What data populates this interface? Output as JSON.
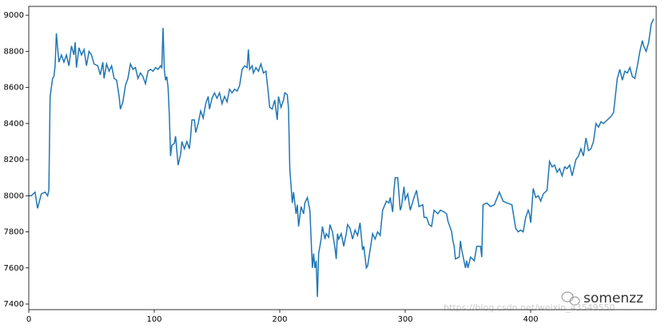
{
  "chart_data": {
    "type": "line",
    "color": "#1f77b4",
    "xlim": [
      0,
      500
    ],
    "ylim": [
      7369,
      9049
    ],
    "xticks": [
      0,
      100,
      200,
      300,
      400
    ],
    "yticks": [
      7400,
      7600,
      7800,
      8000,
      8200,
      8400,
      8600,
      8800,
      9000
    ],
    "watermark": "somenzz",
    "watermark_url": "https://blog.csdn.net/weixin_43549550",
    "x": [
      0,
      2,
      5,
      7,
      10,
      13,
      15,
      16,
      17,
      19,
      20,
      21,
      22,
      24,
      26,
      28,
      30,
      32,
      34,
      36,
      37,
      38,
      40,
      42,
      44,
      46,
      48,
      50,
      52,
      55,
      57,
      59,
      60,
      62,
      64,
      66,
      68,
      70,
      72,
      73,
      75,
      77,
      79,
      81,
      83,
      85,
      87,
      89,
      91,
      93,
      95,
      97,
      99,
      101,
      103,
      105,
      106,
      107,
      108,
      109,
      110,
      111,
      112,
      113,
      114,
      116,
      117,
      118,
      119,
      121,
      122,
      124,
      126,
      128,
      129,
      130,
      132,
      133,
      135,
      137,
      139,
      141,
      143,
      144,
      146,
      148,
      150,
      152,
      154,
      156,
      158,
      160,
      162,
      164,
      166,
      168,
      170,
      172,
      174,
      175,
      176,
      178,
      179,
      181,
      183,
      185,
      187,
      189,
      191,
      192,
      194,
      196,
      198,
      199,
      201,
      203,
      204,
      206,
      207,
      208,
      210,
      211,
      213,
      214,
      215,
      217,
      219,
      220,
      222,
      224,
      226,
      227,
      228,
      229,
      230,
      231,
      233,
      234,
      236,
      237,
      239,
      240,
      242,
      244,
      245,
      246,
      247,
      249,
      251,
      253,
      254,
      256,
      258,
      260,
      262,
      264,
      266,
      267,
      269,
      270,
      272,
      274,
      276,
      278,
      280,
      282,
      285,
      287,
      288,
      290,
      291,
      292,
      294,
      296,
      297,
      299,
      300,
      302,
      304,
      307,
      309,
      311,
      314,
      315,
      317,
      319,
      321,
      323,
      326,
      328,
      331,
      333,
      334,
      337,
      338,
      339,
      340,
      343,
      344,
      345,
      348,
      349,
      350,
      352,
      355,
      357,
      360,
      361,
      362,
      365,
      368,
      371,
      375,
      378,
      381,
      385,
      388,
      390,
      392,
      394,
      396,
      398,
      399,
      400,
      402,
      404,
      406,
      408,
      410,
      413,
      415,
      417,
      419,
      421,
      423,
      425,
      427,
      429,
      431,
      433,
      436,
      438,
      440,
      442,
      444,
      446,
      448,
      450,
      452,
      454,
      456,
      458,
      461,
      464,
      466,
      469,
      471,
      473,
      475,
      477,
      479,
      481,
      483,
      485,
      487,
      489,
      490,
      492,
      494,
      496,
      498
    ],
    "values": [
      8000,
      8000,
      8020,
      7930,
      8010,
      8020,
      8000,
      8030,
      8550,
      8650,
      8660,
      8720,
      8900,
      8740,
      8780,
      8740,
      8780,
      8720,
      8830,
      8780,
      8850,
      8710,
      8820,
      8780,
      8810,
      8720,
      8800,
      8780,
      8730,
      8720,
      8670,
      8740,
      8650,
      8730,
      8690,
      8720,
      8650,
      8640,
      8550,
      8480,
      8520,
      8610,
      8650,
      8730,
      8700,
      8710,
      8650,
      8680,
      8660,
      8620,
      8690,
      8700,
      8690,
      8710,
      8700,
      8720,
      8710,
      8930,
      8700,
      8640,
      8660,
      8600,
      8450,
      8220,
      8280,
      8290,
      8330,
      8250,
      8170,
      8230,
      8300,
      8260,
      8300,
      8260,
      8330,
      8420,
      8420,
      8350,
      8400,
      8470,
      8430,
      8510,
      8550,
      8480,
      8540,
      8570,
      8540,
      8570,
      8510,
      8550,
      8520,
      8590,
      8570,
      8590,
      8580,
      8610,
      8700,
      8720,
      8710,
      8810,
      8700,
      8720,
      8680,
      8710,
      8690,
      8730,
      8680,
      8690,
      8560,
      8490,
      8480,
      8530,
      8420,
      8550,
      8490,
      8530,
      8570,
      8560,
      8480,
      8150,
      7960,
      8020,
      7900,
      7950,
      7830,
      7940,
      7900,
      7960,
      7990,
      7920,
      7600,
      7680,
      7600,
      7640,
      7440,
      7680,
      7760,
      7830,
      7760,
      7790,
      7770,
      7840,
      7800,
      7710,
      7650,
      7790,
      7760,
      7790,
      7720,
      7790,
      7840,
      7820,
      7760,
      7810,
      7780,
      7850,
      7700,
      7720,
      7600,
      7610,
      7700,
      7790,
      7760,
      7800,
      7780,
      7920,
      7970,
      7960,
      7990,
      7910,
      8030,
      8100,
      8100,
      7920,
      7940,
      8050,
      7980,
      8010,
      7920,
      7990,
      8030,
      7940,
      7950,
      7880,
      7880,
      7840,
      7830,
      7920,
      7900,
      7920,
      7910,
      7900,
      7860,
      7800,
      7750,
      7720,
      7650,
      7660,
      7750,
      7700,
      7600,
      7640,
      7600,
      7660,
      7640,
      7720,
      7720,
      7660,
      7950,
      7960,
      7940,
      7950,
      8020,
      7970,
      7960,
      7950,
      7820,
      7800,
      7810,
      7800,
      7880,
      7920,
      7900,
      7850,
      8040,
      7990,
      8000,
      7970,
      8010,
      8030,
      8190,
      8160,
      8170,
      8130,
      8150,
      8110,
      8160,
      8150,
      8170,
      8110,
      8200,
      8220,
      8260,
      8220,
      8320,
      8250,
      8260,
      8300,
      8400,
      8380,
      8410,
      8400,
      8420,
      8440,
      8460,
      8650,
      8700,
      8640,
      8690,
      8680,
      8710,
      8660,
      8650,
      8720,
      8800,
      8860,
      8830,
      8800,
      8850,
      8950,
      8980
    ]
  }
}
